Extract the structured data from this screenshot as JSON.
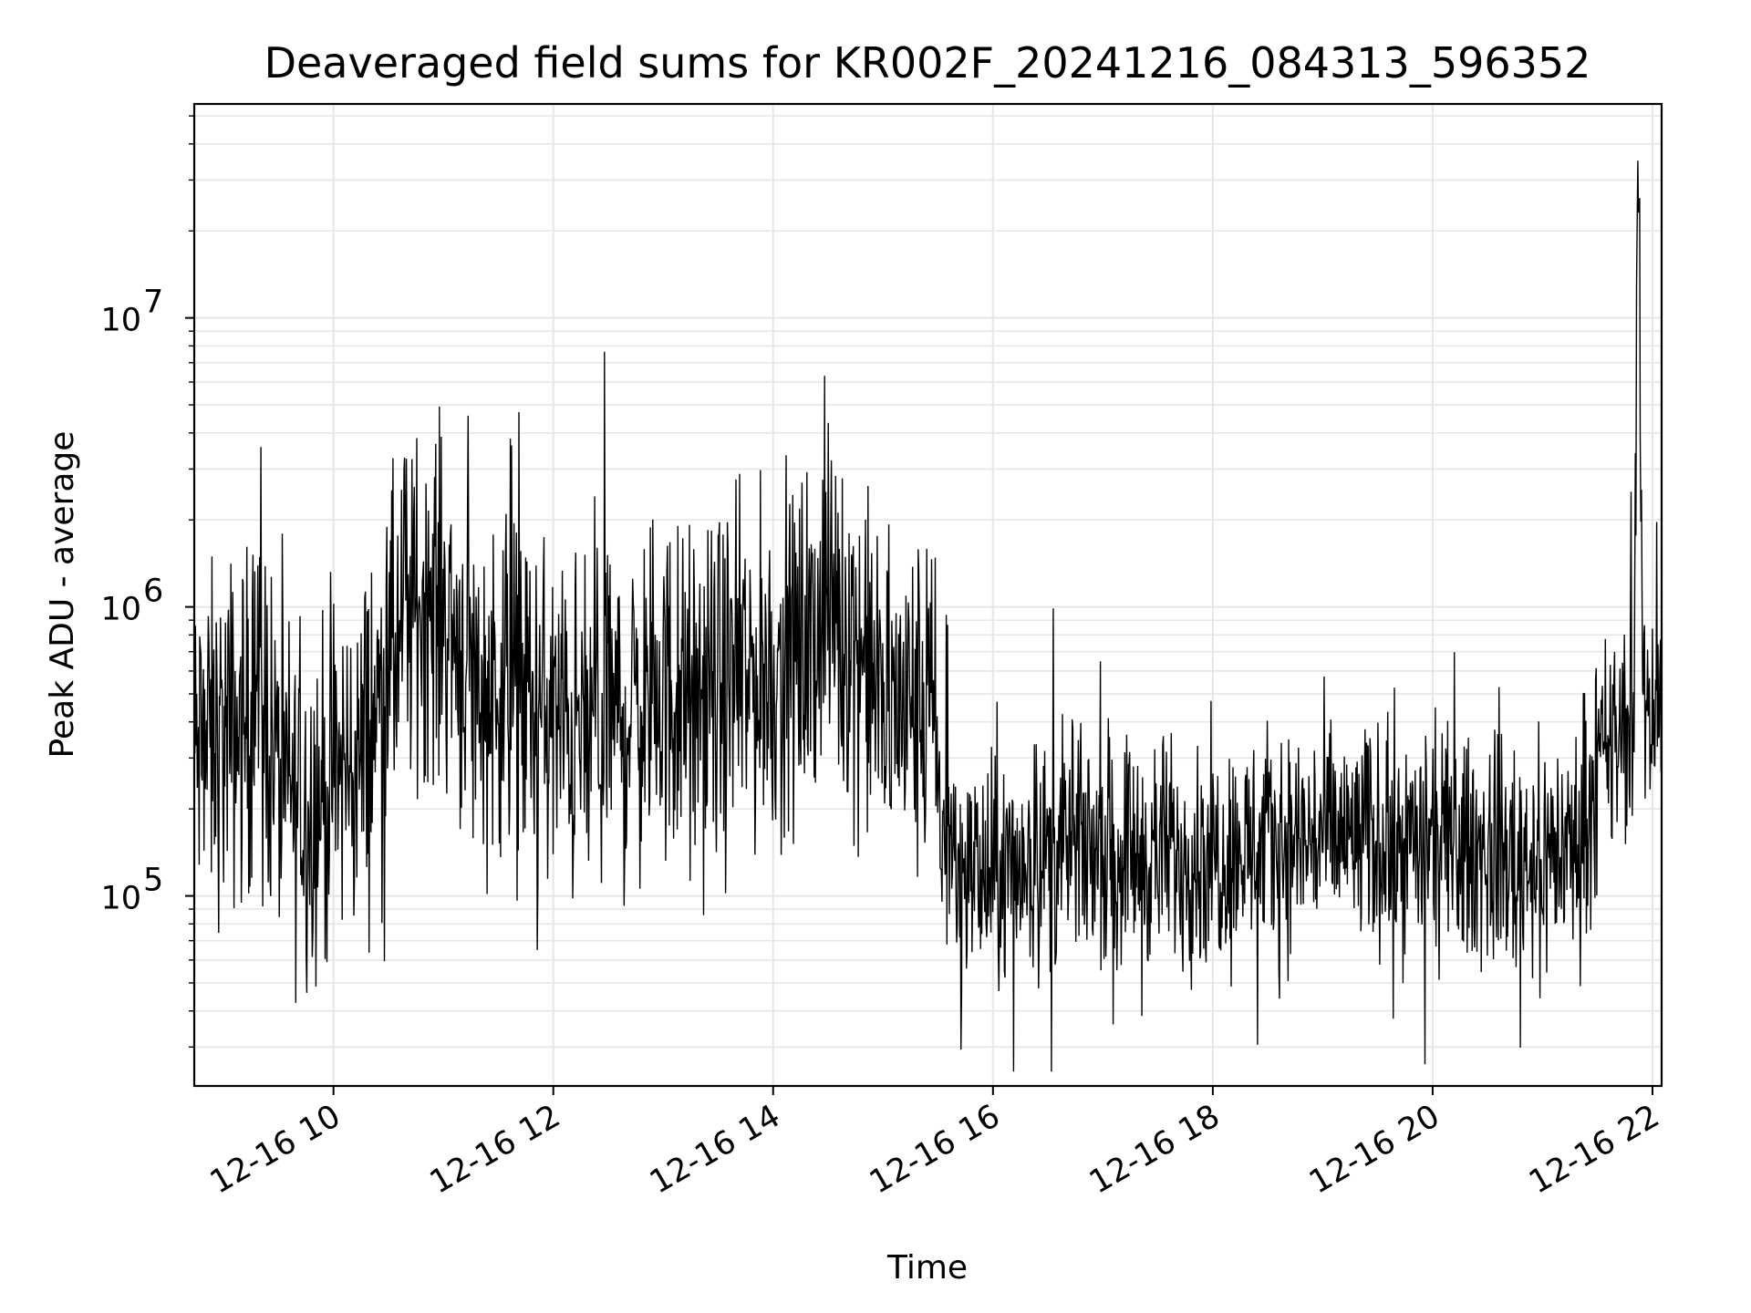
{
  "chart_data": {
    "type": "line",
    "title": "Deaveraged field sums for KR002F_20241216_084313_596352",
    "xlabel": "Time",
    "ylabel": "Peak ADU - average",
    "yscale": "log",
    "ylim": [
      22000,
      55000000
    ],
    "xlim": [
      "12-16 08:44",
      "12-16 22:05"
    ],
    "grid": "major and minor",
    "line_color": "#000000",
    "grid_color": "#e6e6e6",
    "x_ticks": [
      "12-16 10",
      "12-16 12",
      "12-16 14",
      "12-16 16",
      "12-16 18",
      "12-16 20",
      "12-16 22"
    ],
    "y_ticks": [
      {
        "base": "10",
        "exp": "5",
        "value": 100000
      },
      {
        "base": "10",
        "exp": "6",
        "value": 1000000
      },
      {
        "base": "10",
        "exp": "7",
        "value": 10000000
      }
    ],
    "series": [
      {
        "x": [
          "12-16 08:44",
          "12-16 09:00",
          "12-16 09:15",
          "12-16 09:20",
          "12-16 09:30",
          "12-16 09:45",
          "12-16 10:00",
          "12-16 10:15",
          "12-16 10:30",
          "12-16 10:40",
          "12-16 10:50",
          "12-16 11:00",
          "12-16 11:10",
          "12-16 11:20",
          "12-16 11:30",
          "12-16 11:40",
          "12-16 11:50",
          "12-16 12:00",
          "12-16 12:15",
          "12-16 12:30",
          "12-16 12:45",
          "12-16 13:00",
          "12-16 13:15",
          "12-16 13:30",
          "12-16 13:45",
          "12-16 14:00",
          "12-16 14:15",
          "12-16 14:30",
          "12-16 14:45",
          "12-16 15:00",
          "12-16 15:15",
          "12-16 15:28",
          "12-16 15:32",
          "12-16 15:45",
          "12-16 16:00",
          "12-16 16:15",
          "12-16 16:30",
          "12-16 17:00",
          "12-16 17:30",
          "12-16 18:00",
          "12-16 18:30",
          "12-16 19:00",
          "12-16 19:30",
          "12-16 20:00",
          "12-16 20:30",
          "12-16 21:00",
          "12-16 21:20",
          "12-16 21:30",
          "12-16 21:45",
          "12-16 21:50",
          "12-16 21:52",
          "12-16 21:55",
          "12-16 22:05"
        ],
        "values": [
          300000,
          350000,
          400000,
          600000,
          250000,
          200000,
          250000,
          300000,
          600000,
          900000,
          1100000,
          1000000,
          700000,
          500000,
          550000,
          500000,
          450000,
          400000,
          350000,
          400000,
          450000,
          500000,
          450000,
          500000,
          550000,
          600000,
          700000,
          1000000,
          800000,
          450000,
          450000,
          400000,
          150000,
          130000,
          110000,
          130000,
          140000,
          150000,
          140000,
          140000,
          150000,
          160000,
          155000,
          150000,
          140000,
          140000,
          150000,
          280000,
          380000,
          400000,
          35000000,
          500000,
          450000
        ]
      }
    ]
  }
}
